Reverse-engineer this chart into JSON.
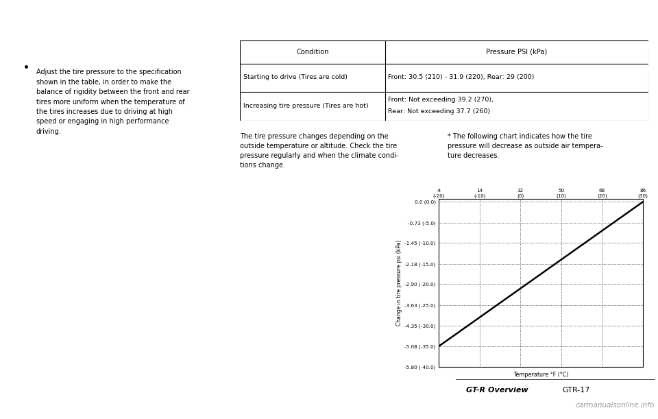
{
  "page_bg": "#ffffff",
  "bullet_text_lines": [
    "Adjust the tire pressure to the specification",
    "shown in the table, in order to make the",
    "balance of rigidity between the front and rear",
    "tires more uniform when the temperature of",
    "the tires increases due to driving at high",
    "speed or engaging in high performance",
    "driving."
  ],
  "table_headers": [
    "Condition",
    "Pressure PSI (kPa)"
  ],
  "table_rows": [
    [
      "Starting to drive (Tires are cold)",
      "Front: 30.5 (210) - 31.9 (220), Rear: 29 (200)"
    ],
    [
      "Increasing tire pressure (Tires are hot)",
      "Front: Not exceeding 39.2 (270),\nRear: Not exceeding 37.7 (260)"
    ]
  ],
  "text_below_table_left_lines": [
    "The tire pressure changes depending on the",
    "outside temperature or altitude. Check the tire",
    "pressure regularly and when the climate condi-",
    "tions change."
  ],
  "text_below_table_right_lines": [
    "* The following chart indicates how the tire",
    "pressure will decrease as outside air tempera-",
    "ture decreases."
  ],
  "chart_xlabel": "Temperature °F (°C)",
  "chart_ylabel": "Change in tire pressure psi (kPa)",
  "xtick_labels_top_f": [
    "-4",
    "14",
    "32",
    "50",
    "68",
    "86"
  ],
  "xtick_labels_top_c": [
    "(-20)",
    "(-10)",
    "(0)",
    "(10)",
    "(20)",
    "(30)"
  ],
  "xtick_vals_f": [
    -4,
    14,
    32,
    50,
    68,
    86
  ],
  "ytick_labels": [
    "0.0 (0.0)",
    "-0.73 (-5.0)",
    "-1.45 (-10.0)",
    "-2.18 (-15.0)",
    "-2.90 (-20.0)",
    "-3.63 (-25.0)",
    "-4.35 (-30.0)",
    "-5.08 (-35.0)",
    "-5.80 (-40.0)"
  ],
  "ytick_vals": [
    0.0,
    -0.73,
    -1.45,
    -2.18,
    -2.9,
    -3.63,
    -4.35,
    -5.08,
    -5.8
  ],
  "line_x": [
    -4,
    86
  ],
  "line_y": [
    -5.08,
    0.0
  ],
  "footer_label": "GT-R Overview",
  "footer_page": "GTR-17",
  "footer_watermark": "carmanualsonline.info"
}
